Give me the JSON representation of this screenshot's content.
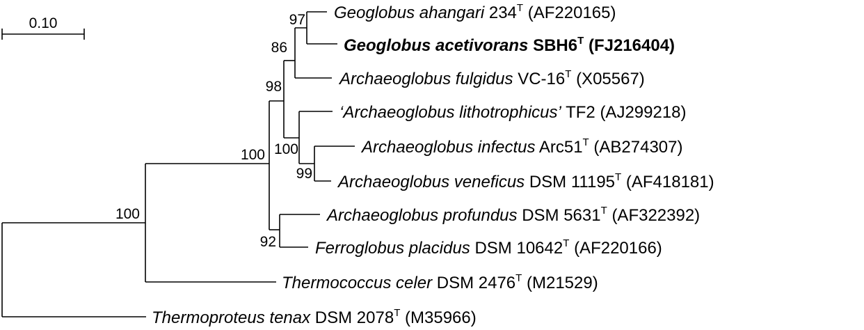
{
  "scale_bar": {
    "label": "0.10"
  },
  "taxa": [
    {
      "italic": "Geoglobus ahangari",
      "strain": "234",
      "type_strain": "T",
      "accession": "(AF220165)",
      "bold": false,
      "quoted": false
    },
    {
      "italic": "Geoglobus acetivorans",
      "strain": "SBH6",
      "type_strain": "T",
      "accession": "(FJ216404)",
      "bold": true,
      "quoted": false
    },
    {
      "italic": "Archaeoglobus fulgidus",
      "strain": "VC-16",
      "type_strain": "T",
      "accession": "(X05567)",
      "bold": false,
      "quoted": false
    },
    {
      "italic": "‘Archaeoglobus lithotrophicus’",
      "strain": "TF2",
      "type_strain": "",
      "accession": "(AJ299218)",
      "bold": false,
      "quoted": true
    },
    {
      "italic": "Archaeoglobus infectus",
      "strain": "Arc51",
      "type_strain": "T",
      "accession": "(AB274307)",
      "bold": false,
      "quoted": false
    },
    {
      "italic": "Archaeoglobus veneficus",
      "strain": "DSM 11195",
      "type_strain": "T",
      "accession": "(AF418181)",
      "bold": false,
      "quoted": false
    },
    {
      "italic": "Archaeoglobus profundus",
      "strain": "DSM 5631",
      "type_strain": "T",
      "accession": "(AF322392)",
      "bold": false,
      "quoted": false
    },
    {
      "italic": "Ferroglobus placidus",
      "strain": "DSM 10642",
      "type_strain": "T",
      "accession": "(AF220166)",
      "bold": false,
      "quoted": false
    },
    {
      "italic": "Thermococcus celer",
      "strain": "DSM 2476",
      "type_strain": "T",
      "accession": "(M21529)",
      "bold": false,
      "quoted": false
    },
    {
      "italic": "Thermoproteus tenax",
      "strain": "DSM 2078",
      "type_strain": "T",
      "accession": "(M35966)",
      "bold": false,
      "quoted": false
    }
  ],
  "bootstrap_values": [
    "97",
    "86",
    "98",
    "100",
    "99",
    "100",
    "92",
    "100"
  ]
}
